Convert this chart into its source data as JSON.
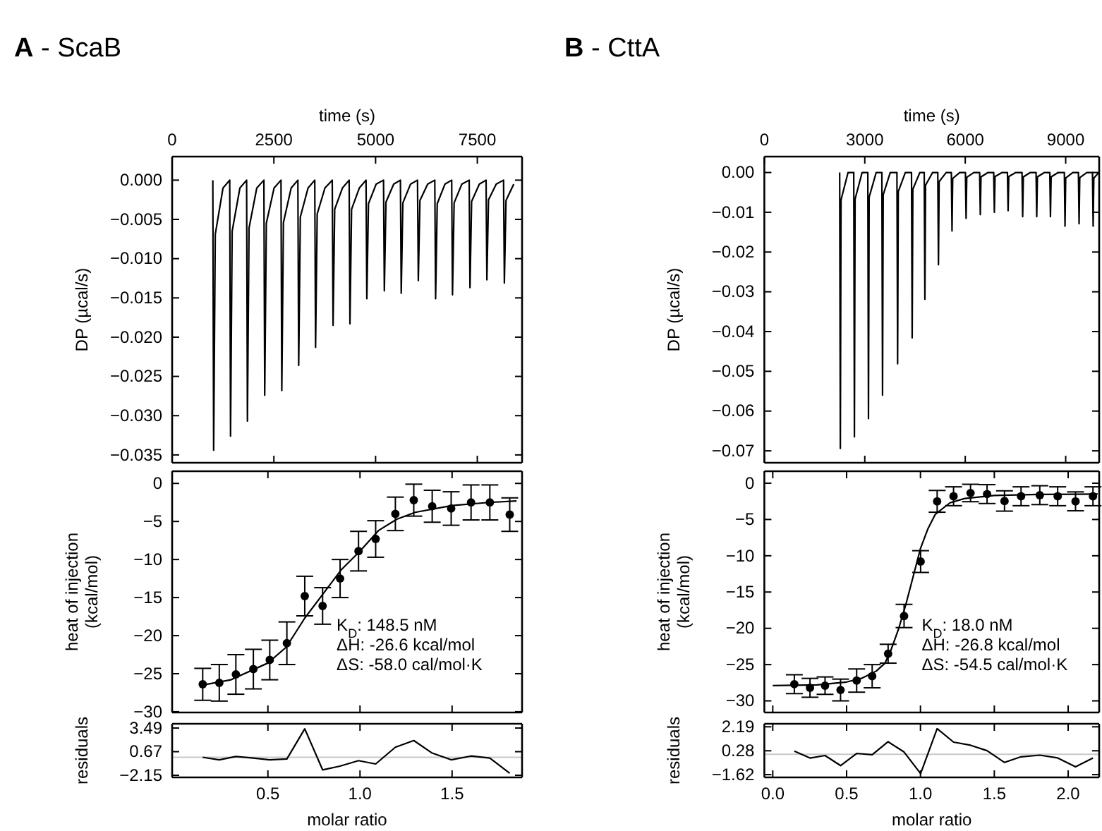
{
  "chart_data": [
    {
      "type": "line",
      "title": "A - ScaB",
      "xlabel": "time (s)",
      "ylabel": "DP (µcal/s)",
      "xlim": [
        0,
        8600
      ],
      "xticks": [
        0,
        2500,
        5000,
        7500
      ],
      "ylim": [
        -0.036,
        0.003
      ],
      "yticks": [
        {
          "value": 0,
          "label": "0.000"
        },
        {
          "value": -0.005,
          "label": "−0.005"
        },
        {
          "value": -0.01,
          "label": "−0.010"
        },
        {
          "value": -0.015,
          "label": "−0.015"
        },
        {
          "value": -0.02,
          "label": "−0.020"
        },
        {
          "value": -0.025,
          "label": "−0.025"
        },
        {
          "value": -0.03,
          "label": "−0.030"
        },
        {
          "value": -0.035,
          "label": "−0.035"
        }
      ],
      "series": [
        {
          "color": "#000000",
          "x": [
            1000,
            1020,
            1060,
            1250,
            1415,
            1435,
            1475,
            1665,
            1830,
            1850,
            1890,
            2080,
            2255,
            2275,
            2315,
            2505,
            2675,
            2695,
            2735,
            2925,
            3090,
            3110,
            3150,
            3340,
            3505,
            3525,
            3565,
            3755,
            3935,
            3955,
            3995,
            4185,
            4350,
            4370,
            4410,
            4600,
            4765,
            4785,
            4825,
            5015,
            5195,
            5215,
            5255,
            5445,
            5610,
            5630,
            5670,
            5860,
            6030,
            6050,
            6090,
            6280,
            6455,
            6475,
            6515,
            6705,
            6870,
            6890,
            6930,
            7120,
            7300,
            7320,
            7360,
            7550,
            7715,
            7735,
            7775,
            7965,
            8145,
            8165,
            8205,
            8395
          ],
          "values": [
            0,
            -0.0344,
            -0.0069,
            -0.001,
            0,
            -0.0326,
            -0.0065,
            -0.001,
            0,
            -0.0307,
            -0.0061,
            -0.001,
            0,
            -0.0274,
            -0.0055,
            -0.001,
            0,
            -0.0268,
            -0.0054,
            -0.001,
            0,
            -0.0236,
            -0.0047,
            -0.001,
            0,
            -0.0213,
            -0.0043,
            -0.001,
            0,
            -0.0185,
            -0.0037,
            -0.001,
            0,
            -0.0183,
            -0.0037,
            -0.001,
            0,
            -0.0151,
            -0.003,
            -0.0005,
            0,
            -0.0141,
            -0.0028,
            -0.0005,
            0,
            -0.0144,
            -0.0029,
            -0.0005,
            0,
            -0.0128,
            -0.0026,
            -0.0005,
            0,
            -0.0151,
            -0.003,
            -0.0005,
            0,
            -0.0146,
            -0.0029,
            -0.0005,
            0,
            -0.0137,
            -0.0027,
            -0.0005,
            0,
            -0.0127,
            -0.0025,
            -0.0005,
            0,
            -0.0131,
            -0.0026,
            -0.0005
          ]
        }
      ]
    },
    {
      "type": "line",
      "ylabel": "heat of injection\n(kcal/mol)",
      "xlim": [
        -0.02,
        1.88
      ],
      "ylim": [
        -30.1,
        1.6
      ],
      "xticks": [
        {
          "value": 0.5,
          "label": null
        },
        {
          "value": 1,
          "label": null
        },
        {
          "value": 1.5,
          "label": null
        }
      ],
      "tick_labels": "y",
      "yticks": [
        0,
        {
          "value": -5,
          "label": "−5"
        },
        {
          "value": -10,
          "label": "−10"
        },
        {
          "value": -15,
          "label": "−15"
        },
        {
          "value": -20,
          "label": "−20"
        },
        {
          "value": -25,
          "label": "−25"
        },
        {
          "value": -30,
          "label": "−30"
        }
      ],
      "annotations": [
        "K$_{D}$: 148.5 nM",
        "ΔH: -26.6 kcal/mol",
        "ΔS: -58.0 cal/mol·K"
      ],
      "series": [
        {
          "type": "scatter",
          "marker": "circle",
          "color": "#000000",
          "x": [
            0.146,
            0.236,
            0.326,
            0.421,
            0.51,
            0.603,
            0.7,
            0.797,
            0.892,
            0.992,
            1.085,
            1.192,
            1.292,
            1.392,
            1.495,
            1.603,
            1.705,
            1.813
          ],
          "values": [
            -26.4,
            -26.2,
            -25.1,
            -24.4,
            -23.2,
            -21.0,
            -14.8,
            -16.1,
            -12.5,
            -8.9,
            -7.3,
            -4.0,
            -2.2,
            -3.0,
            -3.3,
            -2.5,
            -2.5,
            -4.1
          ],
          "errors": [
            2.1,
            2.4,
            2.6,
            2.6,
            2.6,
            2.8,
            2.6,
            2.4,
            2.5,
            2.6,
            2.4,
            2.2,
            2.1,
            2.1,
            2.2,
            2.3,
            2.3,
            2.2
          ]
        },
        {
          "color": "#000000",
          "x": [
            0.146,
            0.3,
            0.5,
            0.6,
            0.7,
            0.8,
            0.9,
            1.0,
            1.1,
            1.2,
            1.3,
            1.5,
            1.7,
            1.85
          ],
          "values": [
            -26.5,
            -25.8,
            -23.6,
            -21.5,
            -17.7,
            -14.5,
            -11.3,
            -8.9,
            -6.2,
            -4.7,
            -3.8,
            -2.9,
            -2.5,
            -2.3
          ]
        }
      ]
    },
    {
      "type": "line",
      "xlabel": "molar ratio",
      "ylabel": "residuals",
      "xlim": [
        -0.02,
        1.88
      ],
      "ylim": [
        -2.4,
        4.0
      ],
      "xticks": [
        0.5,
        {
          "value": 1,
          "label": "1.0"
        },
        1.5
      ],
      "yticks": [
        3.49,
        0.67,
        {
          "value": -2.15,
          "label": "−2.15"
        }
      ],
      "ref_lines": [
        {
          "axis": "y",
          "value": 0,
          "color": "#c8c8c8"
        }
      ],
      "series": [
        {
          "color": "#000000",
          "x": [
            0.146,
            0.236,
            0.326,
            0.421,
            0.51,
            0.603,
            0.7,
            0.797,
            0.892,
            0.992,
            1.085,
            1.192,
            1.292,
            1.392,
            1.495,
            1.603,
            1.705,
            1.813
          ],
          "values": [
            0,
            -0.3,
            0.1,
            -0.1,
            -0.3,
            -0.2,
            3.4,
            -1.5,
            -1.05,
            -0.4,
            -0.8,
            1.2,
            2.0,
            0.5,
            -0.3,
            0.15,
            -0.1,
            -1.9
          ]
        }
      ]
    },
    {
      "type": "line",
      "title": "B - CttA",
      "xlabel": "time (s)",
      "ylabel": "DP (µcal/s)",
      "xlim": [
        0,
        10000
      ],
      "xticks": [
        0,
        3000,
        6000,
        9000
      ],
      "ylim": [
        -0.073,
        0.004
      ],
      "yticks": [
        {
          "value": 0,
          "label": "0.00"
        },
        {
          "value": -0.01,
          "label": "−0.01"
        },
        {
          "value": -0.02,
          "label": "−0.02"
        },
        {
          "value": -0.03,
          "label": "−0.03"
        },
        {
          "value": -0.04,
          "label": "−0.04"
        },
        {
          "value": -0.05,
          "label": "−0.05"
        },
        {
          "value": -0.06,
          "label": "−0.06"
        },
        {
          "value": -0.07,
          "label": "−0.07"
        }
      ],
      "series": [
        {
          "color": "#000000",
          "x": [
            2250,
            2270,
            2290,
            2500,
            2670,
            2690,
            2710,
            2920,
            3090,
            3110,
            3130,
            3340,
            3510,
            3530,
            3550,
            3760,
            3960,
            3980,
            4000,
            4210,
            4395,
            4415,
            4435,
            4645,
            4775,
            4795,
            4815,
            5025,
            5180,
            5200,
            5220,
            5430,
            5585,
            5605,
            5625,
            5835,
            6005,
            6025,
            6045,
            6255,
            6430,
            6450,
            6470,
            6680,
            6850,
            6870,
            6890,
            7100,
            7260,
            7280,
            7300,
            7510,
            7695,
            7715,
            7735,
            7945,
            8115,
            8135,
            8155,
            8365,
            8525,
            8545,
            8565,
            8775,
            8960,
            8980,
            9000,
            9210,
            9380,
            9400,
            9420,
            9630,
            9800,
            9820,
            9840,
            9990
          ],
          "values": [
            0,
            -0.0694,
            -0.0069,
            0,
            0,
            -0.0665,
            -0.0067,
            0,
            0,
            -0.0619,
            -0.0062,
            0,
            0,
            -0.056,
            -0.0056,
            0,
            0,
            -0.0481,
            -0.0048,
            0,
            0,
            -0.0416,
            -0.0042,
            0,
            0,
            -0.0319,
            -0.0032,
            0,
            0,
            -0.0232,
            -0.0023,
            0,
            0,
            -0.0147,
            -0.0015,
            0,
            0,
            -0.0115,
            -0.0012,
            0,
            0,
            -0.0106,
            -0.0011,
            0,
            0,
            -0.01,
            -0.001,
            0,
            0,
            -0.0096,
            -0.001,
            0,
            0,
            -0.0111,
            -0.0011,
            0,
            0,
            -0.0111,
            -0.0011,
            0,
            0,
            -0.0111,
            -0.0011,
            0,
            0,
            -0.0135,
            -0.0014,
            0,
            0,
            -0.0129,
            -0.0013,
            0,
            0,
            -0.0135,
            -0.0014,
            0
          ]
        }
      ]
    },
    {
      "type": "line",
      "ylabel": "heat of injection\n(kcal/mol)",
      "xlim": [
        -0.057,
        2.21
      ],
      "ylim": [
        -31.6,
        1.65
      ],
      "xticks": [
        {
          "value": 0,
          "label": null
        },
        {
          "value": 0.5,
          "label": null
        },
        {
          "value": 1,
          "label": null
        },
        {
          "value": 1.5,
          "label": null
        },
        {
          "value": 2,
          "label": null
        }
      ],
      "tick_labels": "y",
      "yticks": [
        0,
        {
          "value": -5,
          "label": "−5"
        },
        {
          "value": -10,
          "label": "−10"
        },
        {
          "value": -15,
          "label": "−15"
        },
        {
          "value": -20,
          "label": "−20"
        },
        {
          "value": -25,
          "label": "−25"
        },
        {
          "value": -30,
          "label": "−30"
        }
      ],
      "annotations": [
        "K$_{D}$: 18.0 nM",
        "ΔH: -26.8 kcal/mol",
        "ΔS: -54.5 cal/mol·K"
      ],
      "series": [
        {
          "type": "scatter",
          "marker": "circle",
          "color": "#000000",
          "x": [
            0.146,
            0.252,
            0.354,
            0.459,
            0.568,
            0.673,
            0.781,
            0.889,
            1.001,
            1.113,
            1.224,
            1.339,
            1.451,
            1.569,
            1.681,
            1.808,
            1.929,
            2.05,
            2.168
          ],
          "values": [
            -27.7,
            -28.2,
            -27.9,
            -28.5,
            -27.2,
            -26.6,
            -23.5,
            -18.3,
            -10.8,
            -2.5,
            -1.8,
            -1.35,
            -1.5,
            -2.45,
            -1.8,
            -1.65,
            -1.8,
            -2.5,
            -1.8
          ],
          "errors": [
            1.3,
            1.3,
            1.2,
            1.5,
            1.6,
            1.6,
            1.3,
            1.6,
            1.5,
            1.5,
            1.3,
            1.2,
            1.3,
            1.4,
            1.3,
            1.3,
            1.3,
            1.3,
            1.3
          ]
        },
        {
          "color": "#000000",
          "x": [
            0.0,
            0.3,
            0.5,
            0.6,
            0.7,
            0.76,
            0.8,
            0.85,
            0.9,
            0.95,
            1.0,
            1.05,
            1.1,
            1.2,
            1.3,
            1.5,
            1.8,
            2.2
          ],
          "values": [
            -27.9,
            -27.8,
            -27.4,
            -26.9,
            -25.9,
            -24.8,
            -23.0,
            -20.2,
            -16.8,
            -12.9,
            -9.0,
            -6.3,
            -4.3,
            -2.7,
            -2.1,
            -1.7,
            -1.55,
            -1.5
          ]
        }
      ]
    },
    {
      "type": "line",
      "xlabel": "molar ratio",
      "ylabel": "residuals",
      "xlim": [
        -0.057,
        2.21
      ],
      "ylim": [
        -1.84,
        2.43
      ],
      "xticks": [
        {
          "value": 0,
          "label": "0.0"
        },
        0.5,
        {
          "value": 1,
          "label": "1.0"
        },
        1.5,
        {
          "value": 2,
          "label": "2.0"
        }
      ],
      "yticks": [
        2.19,
        0.28,
        {
          "value": -1.62,
          "label": "−1.62"
        }
      ],
      "ref_lines": [
        {
          "axis": "y",
          "value": 0,
          "color": "#c8c8c8"
        }
      ],
      "series": [
        {
          "color": "#000000",
          "x": [
            0.146,
            0.252,
            0.354,
            0.459,
            0.568,
            0.673,
            0.781,
            0.889,
            1.001,
            1.113,
            1.224,
            1.339,
            1.451,
            1.569,
            1.681,
            1.808,
            1.929,
            2.05,
            2.168
          ],
          "values": [
            0.25,
            -0.3,
            -0.1,
            -0.9,
            0.07,
            -0.04,
            1.0,
            0.18,
            -1.54,
            2.04,
            0.97,
            0.72,
            0.29,
            -0.65,
            -0.2,
            -0.07,
            -0.29,
            -1.0,
            -0.29
          ]
        }
      ]
    }
  ]
}
